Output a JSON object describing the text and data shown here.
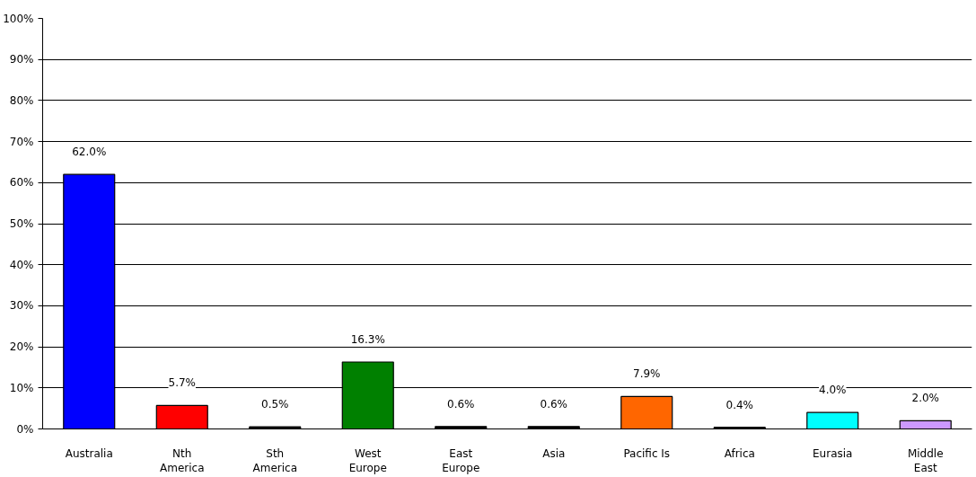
{
  "chart_data": {
    "type": "bar",
    "categories": [
      "Australia",
      "Nth America",
      "Sth America",
      "West Europe",
      "East Europe",
      "Asia",
      "Pacific Is",
      "Africa",
      "Eurasia",
      "Middle East"
    ],
    "values": [
      62.0,
      5.7,
      0.5,
      16.3,
      0.6,
      0.6,
      7.9,
      0.4,
      4.0,
      2.0
    ],
    "value_labels": [
      "62.0%",
      "5.7%",
      "0.5%",
      "16.3%",
      "0.6%",
      "0.6%",
      "7.9%",
      "0.4%",
      "4.0%",
      "2.0%"
    ],
    "colors": [
      "#0000ff",
      "#ff0000",
      "#000000",
      "#008000",
      "#000000",
      "#000000",
      "#ff6600",
      "#000000",
      "#00ffff",
      "#cc99ff"
    ],
    "ylim": [
      0,
      100
    ],
    "yticks": [
      {
        "value": 0,
        "label": "0%"
      },
      {
        "value": 10,
        "label": "10%"
      },
      {
        "value": 20,
        "label": "20%"
      },
      {
        "value": 30,
        "label": "30%"
      },
      {
        "value": 40,
        "label": "40%"
      },
      {
        "value": 50,
        "label": "50%"
      },
      {
        "value": 60,
        "label": "60%"
      },
      {
        "value": 70,
        "label": "70%"
      },
      {
        "value": 80,
        "label": "80%"
      },
      {
        "value": 90,
        "label": "90%"
      },
      {
        "value": 100,
        "label": "100%"
      }
    ],
    "grid": "y"
  }
}
